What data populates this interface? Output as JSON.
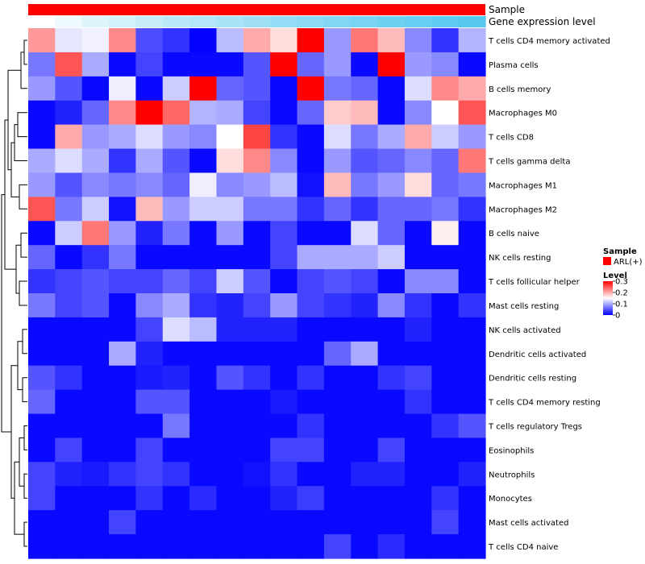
{
  "chart_data": {
    "type": "heatmap",
    "annotations": [
      {
        "name": "Sample",
        "color": "#ff0000"
      },
      {
        "name": "Gene expression level",
        "gradient": [
          "#ffffff",
          "#56c8ef"
        ]
      }
    ],
    "rows": [
      {
        "label": "T cells CD4 memory activated",
        "values": [
          0.21,
          0.135,
          0.142,
          0.22,
          0.045,
          0.03,
          0.002,
          0.11,
          0.2,
          0.17,
          0.3,
          0.09,
          0.23,
          0.19,
          0.08,
          0.03,
          0.105
        ]
      },
      {
        "label": "Plasma cells",
        "values": [
          0.07,
          0.25,
          0.1,
          0.005,
          0.04,
          0.005,
          0.005,
          0.005,
          0.05,
          0.3,
          0.06,
          0.09,
          0.005,
          0.3,
          0.09,
          0.08,
          0.005
        ]
      },
      {
        "label": "B cells memory",
        "values": [
          0.09,
          0.05,
          0.005,
          0.14,
          0.005,
          0.12,
          0.3,
          0.06,
          0.05,
          0.005,
          0.3,
          0.07,
          0.06,
          0.005,
          0.13,
          0.22,
          0.2
        ]
      },
      {
        "label": "Macrophages M0",
        "values": [
          0.005,
          0.02,
          0.06,
          0.22,
          0.3,
          0.24,
          0.105,
          0.1,
          0.04,
          0.005,
          0.06,
          0.18,
          0.19,
          0.005,
          0.08,
          0.15,
          0.25
        ]
      },
      {
        "label": "T cells CD8",
        "values": [
          0.005,
          0.2,
          0.09,
          0.1,
          0.13,
          0.09,
          0.08,
          0.15,
          0.26,
          0.03,
          0.005,
          0.13,
          0.07,
          0.1,
          0.2,
          0.12,
          0.09
        ]
      },
      {
        "label": "T cells gamma delta",
        "values": [
          0.1,
          0.13,
          0.1,
          0.03,
          0.1,
          0.05,
          0.005,
          0.17,
          0.22,
          0.08,
          0.005,
          0.09,
          0.05,
          0.06,
          0.08,
          0.06,
          0.23
        ]
      },
      {
        "label": "Macrophages M1",
        "values": [
          0.09,
          0.05,
          0.08,
          0.07,
          0.08,
          0.06,
          0.14,
          0.08,
          0.09,
          0.11,
          0.01,
          0.19,
          0.07,
          0.09,
          0.17,
          0.06,
          0.07
        ]
      },
      {
        "label": "Macrophages M2",
        "values": [
          0.25,
          0.07,
          0.12,
          0.01,
          0.19,
          0.09,
          0.12,
          0.12,
          0.07,
          0.07,
          0.03,
          0.06,
          0.03,
          0.06,
          0.06,
          0.07,
          0.03
        ]
      },
      {
        "label": "B cells naive",
        "values": [
          0.005,
          0.12,
          0.23,
          0.09,
          0.02,
          0.07,
          0.005,
          0.09,
          0.005,
          0.04,
          0.005,
          0.005,
          0.13,
          0.06,
          0.005,
          0.16,
          0.005
        ]
      },
      {
        "label": "NK cells resting",
        "values": [
          0.06,
          0.005,
          0.03,
          0.07,
          0.005,
          0.005,
          0.005,
          0.005,
          0.005,
          0.04,
          0.1,
          0.1,
          0.1,
          0.12,
          0.005,
          0.005,
          0.005
        ]
      },
      {
        "label": "T cells follicular helper",
        "values": [
          0.03,
          0.04,
          0.05,
          0.04,
          0.04,
          0.06,
          0.04,
          0.12,
          0.05,
          0.005,
          0.04,
          0.05,
          0.04,
          0.005,
          0.08,
          0.08,
          0.005
        ]
      },
      {
        "label": "Mast cells resting",
        "values": [
          0.07,
          0.04,
          0.05,
          0.005,
          0.08,
          0.1,
          0.03,
          0.02,
          0.04,
          0.09,
          0.04,
          0.03,
          0.02,
          0.08,
          0.03,
          0.005,
          0.03
        ]
      },
      {
        "label": "NK cells activated",
        "values": [
          0.005,
          0.005,
          0.005,
          0.005,
          0.04,
          0.13,
          0.11,
          0.02,
          0.02,
          0.02,
          0.005,
          0.005,
          0.005,
          0.005,
          0.02,
          0.005,
          0.005
        ]
      },
      {
        "label": "Dendritic cells activated",
        "values": [
          0.005,
          0.005,
          0.005,
          0.1,
          0.02,
          0.005,
          0.005,
          0.005,
          0.005,
          0.005,
          0.005,
          0.06,
          0.1,
          0.005,
          0.005,
          0.005,
          0.005
        ]
      },
      {
        "label": "Dendritic cells resting",
        "values": [
          0.05,
          0.03,
          0.005,
          0.005,
          0.015,
          0.02,
          0.005,
          0.05,
          0.03,
          0.005,
          0.03,
          0.005,
          0.005,
          0.03,
          0.04,
          0.005,
          0.005
        ]
      },
      {
        "label": "T cells CD4 memory resting",
        "values": [
          0.06,
          0.005,
          0.005,
          0.005,
          0.05,
          0.05,
          0.005,
          0.005,
          0.005,
          0.015,
          0.005,
          0.005,
          0.005,
          0.005,
          0.03,
          0.005,
          0.005
        ]
      },
      {
        "label": "T cells regulatory  Tregs",
        "values": [
          0.005,
          0.005,
          0.005,
          0.005,
          0.005,
          0.07,
          0.005,
          0.005,
          0.005,
          0.005,
          0.03,
          0.005,
          0.005,
          0.005,
          0.005,
          0.03,
          0.05
        ]
      },
      {
        "label": "Eosinophils",
        "values": [
          0.005,
          0.04,
          0.005,
          0.005,
          0.04,
          0.005,
          0.005,
          0.005,
          0.005,
          0.04,
          0.04,
          0.005,
          0.005,
          0.04,
          0.005,
          0.005,
          0.005
        ]
      },
      {
        "label": "Neutrophils",
        "values": [
          0.04,
          0.02,
          0.015,
          0.03,
          0.04,
          0.03,
          0.005,
          0.005,
          0.01,
          0.03,
          0.005,
          0.005,
          0.02,
          0.02,
          0.005,
          0.005,
          0.02
        ]
      },
      {
        "label": "Monocytes",
        "values": [
          0.04,
          0.005,
          0.005,
          0.005,
          0.03,
          0.005,
          0.025,
          0.005,
          0.005,
          0.02,
          0.035,
          0.005,
          0.005,
          0.005,
          0.005,
          0.03,
          0.005
        ]
      },
      {
        "label": "Mast cells activated",
        "values": [
          0.005,
          0.005,
          0.005,
          0.04,
          0.005,
          0.005,
          0.005,
          0.005,
          0.005,
          0.005,
          0.005,
          0.005,
          0.005,
          0.005,
          0.005,
          0.04,
          0.005
        ]
      },
      {
        "label": "T cells CD4 naive",
        "values": [
          0.005,
          0.005,
          0.005,
          0.005,
          0.005,
          0.005,
          0.005,
          0.005,
          0.005,
          0.005,
          0.005,
          0.04,
          0.005,
          0.025,
          0.005,
          0.005,
          0.005
        ]
      }
    ],
    "color_scale": {
      "min": 0,
      "mid": 0.15,
      "max": 0.3,
      "low_color": "#0000ff",
      "mid_color": "#ffffff",
      "high_color": "#ff0000"
    },
    "legend": {
      "sample_title": "Sample",
      "sample_entry": "ARL(+)",
      "sample_color": "#ff0000",
      "level_title": "Level",
      "level_ticks": [
        "0.3",
        "0.2",
        "0.1",
        "0"
      ]
    }
  }
}
